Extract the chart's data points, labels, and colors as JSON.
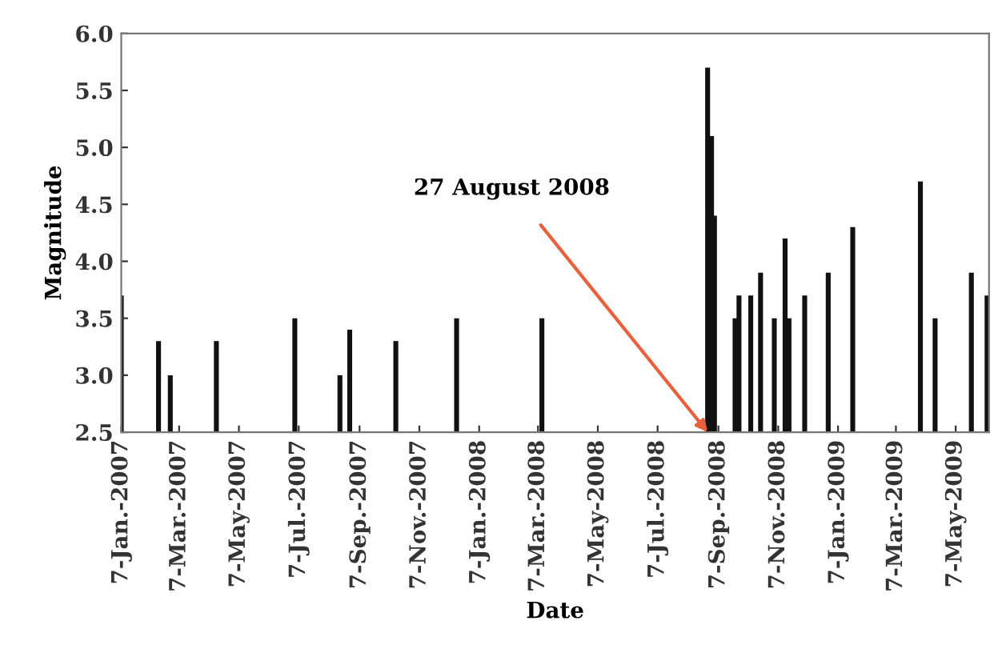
{
  "chart_data": {
    "type": "bar",
    "xlabel": "Date",
    "ylabel": "Magnitude",
    "color": "#111111",
    "grid": false,
    "x": [
      "2007-01-07",
      "2007-02-14",
      "2007-02-26",
      "2007-04-14",
      "2007-07-03",
      "2007-08-18",
      "2007-08-28",
      "2007-10-14",
      "2007-12-15",
      "2008-03-11",
      "2008-08-27",
      "2008-08-31",
      "2008-09-03",
      "2008-09-24",
      "2008-09-28",
      "2008-10-10",
      "2008-10-20",
      "2008-11-03",
      "2008-11-14",
      "2008-11-18",
      "2008-12-04",
      "2008-12-28",
      "2009-01-22",
      "2009-04-01",
      "2009-04-16",
      "2009-05-23",
      "2009-06-08"
    ],
    "values": [
      3.7,
      3.3,
      3.0,
      3.3,
      3.5,
      3.0,
      3.4,
      3.3,
      3.5,
      3.5,
      5.7,
      5.1,
      4.4,
      3.5,
      3.7,
      3.7,
      3.9,
      3.5,
      4.2,
      3.5,
      3.7,
      3.9,
      4.3,
      4.7,
      3.5,
      3.9,
      3.7
    ],
    "ylim": [
      2.5,
      6.0
    ],
    "yticks": [
      {
        "value": 2.5,
        "label": "2.5"
      },
      {
        "value": 3.0,
        "label": "3.0"
      },
      {
        "value": 3.5,
        "label": "3.5"
      },
      {
        "value": 4.0,
        "label": "4.0"
      },
      {
        "value": 4.5,
        "label": "4.5"
      },
      {
        "value": 5.0,
        "label": "5.0"
      },
      {
        "value": 5.5,
        "label": "5.5"
      },
      {
        "value": 6.0,
        "label": "6.0"
      }
    ],
    "xlim": [
      "2007-01-07",
      "2009-06-10"
    ],
    "xticks": [
      {
        "value": "2007-01-07",
        "label": "7-Jan.-2007"
      },
      {
        "value": "2007-03-07",
        "label": "7-Mar.-2007"
      },
      {
        "value": "2007-05-07",
        "label": "7-May-2007"
      },
      {
        "value": "2007-07-07",
        "label": "7-Jul.-2007"
      },
      {
        "value": "2007-09-07",
        "label": "7-Sep.-2007"
      },
      {
        "value": "2007-11-07",
        "label": "7-Nov.-2007"
      },
      {
        "value": "2008-01-07",
        "label": "7-Jan.-2008"
      },
      {
        "value": "2008-03-07",
        "label": "7-Mar.-2008"
      },
      {
        "value": "2008-05-07",
        "label": "7-May-2008"
      },
      {
        "value": "2008-07-07",
        "label": "7-Jul.-2008"
      },
      {
        "value": "2008-09-07",
        "label": "7-Sep.-2008"
      },
      {
        "value": "2008-11-07",
        "label": "7-Nov.-2008"
      },
      {
        "value": "2009-01-07",
        "label": "7-Jan.-2009"
      },
      {
        "value": "2009-03-07",
        "label": "7-Mar.-2009"
      },
      {
        "value": "2009-05-07",
        "label": "7-May-2009"
      }
    ],
    "annotations": [
      {
        "text": "27 August 2008",
        "x": "2008-08-27",
        "y": 2.5
      }
    ]
  }
}
